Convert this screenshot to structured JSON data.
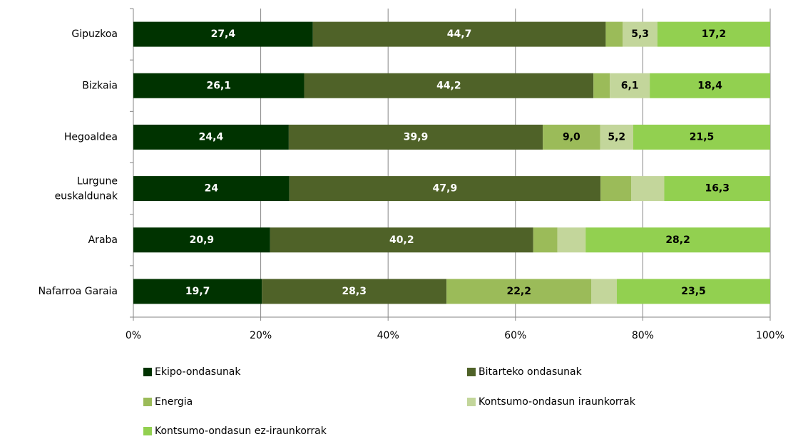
{
  "chart_data": {
    "type": "stacked_bar_100",
    "categories": [
      "Gipuzkoa",
      "Bizkaia",
      "Hegoaldea",
      "Lurgune euskaldunak",
      "Araba",
      "Nafarroa Garaia"
    ],
    "series": [
      {
        "name": "Ekipo-ondasunak",
        "color": "#003300",
        "label_color": "#ffffff",
        "values": [
          27.4,
          26.1,
          24.4,
          24,
          20.9,
          19.7
        ],
        "value_labels": [
          "27,4",
          "26,1",
          "24,4",
          "24",
          "20,9",
          "19,7"
        ]
      },
      {
        "name": "Bitarteko ondasunak",
        "color": "#4f6228",
        "label_color": "#ffffff",
        "values": [
          44.7,
          44.2,
          39.9,
          47.9,
          40.2,
          28.3
        ],
        "value_labels": [
          "44,7",
          "44,2",
          "39,9",
          "47,9",
          "40,2",
          "28,3"
        ]
      },
      {
        "name": "Energia",
        "color": "#9bbb59",
        "label_color": "#000000",
        "values": [
          2.6,
          2.5,
          9.0,
          4.7,
          3.7,
          22.2
        ],
        "value_labels": [
          null,
          null,
          "9,0",
          null,
          null,
          "22,2"
        ]
      },
      {
        "name": "Kontsumo-ondasun iraunkorrak",
        "color": "#c3d69b",
        "label_color": "#000000",
        "values": [
          5.3,
          6.1,
          5.2,
          5.1,
          4.3,
          3.9
        ],
        "value_labels": [
          "5,3",
          "6,1",
          "5,2",
          null,
          null,
          null
        ]
      },
      {
        "name": "Kontsumo-ondasun ez-iraunkorrak",
        "color": "#92d050",
        "label_color": "#000000",
        "values": [
          17.2,
          18.4,
          21.5,
          16.3,
          28.2,
          23.5
        ],
        "value_labels": [
          "17,2",
          "18,4",
          "21,5",
          "16,3",
          "28,2",
          "23,5"
        ]
      }
    ],
    "xlim": [
      0,
      100
    ],
    "xticks": [
      {
        "value": 0,
        "label": "0%"
      },
      {
        "value": 20,
        "label": "20%"
      },
      {
        "value": 40,
        "label": "40%"
      },
      {
        "value": 60,
        "label": "60%"
      },
      {
        "value": 80,
        "label": "80%"
      },
      {
        "value": 100,
        "label": "100%"
      }
    ],
    "grid": true
  }
}
